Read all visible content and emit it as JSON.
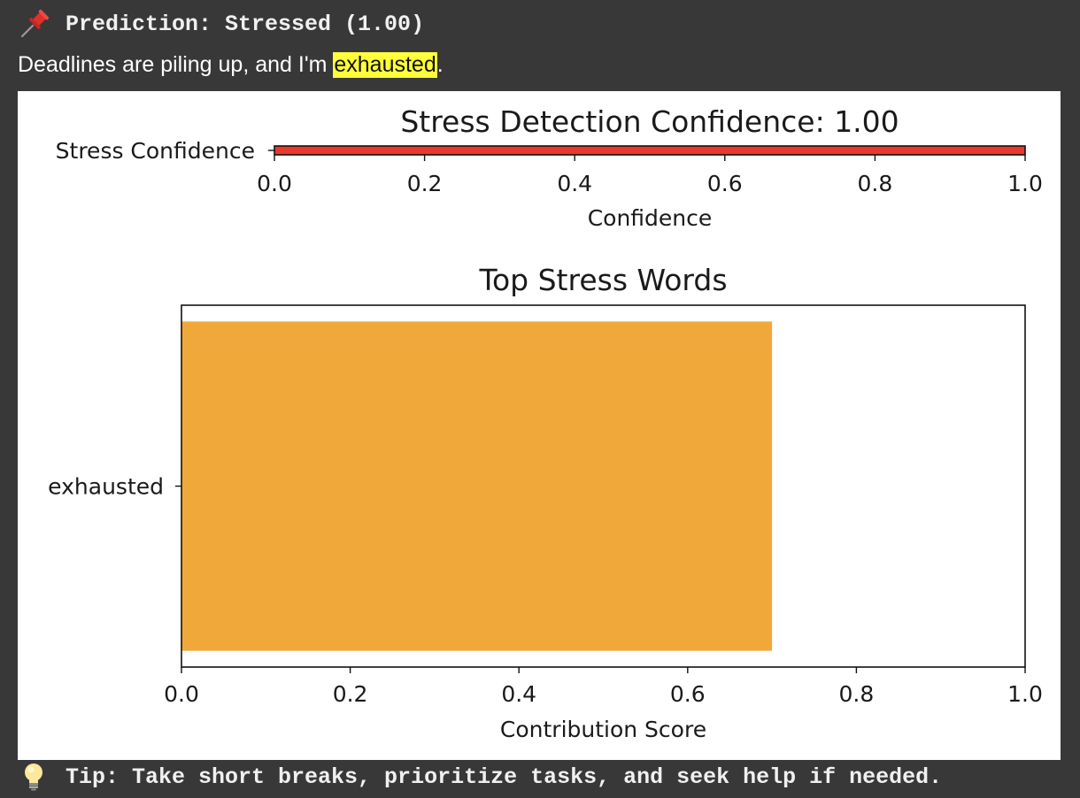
{
  "prediction": {
    "icon": "pushpin-icon",
    "text": "Prediction: Stressed (1.00)"
  },
  "input_text": {
    "before": "Deadlines are piling up, and I'm ",
    "highlighted_word": "exhausted",
    "after": ".",
    "highlight_color": "#ffff3a"
  },
  "chart_data": [
    {
      "type": "bar",
      "orientation": "horizontal",
      "title": "Stress Detection Confidence: 1.00",
      "xlabel": "Confidence",
      "ylabel": "",
      "categories": [
        "Stress Confidence"
      ],
      "values": [
        1.0
      ],
      "xlim": [
        0,
        1.0
      ],
      "xticks": [
        "0.0",
        "0.2",
        "0.4",
        "0.6",
        "0.8",
        "1.0"
      ],
      "bar_color": "#e8392a",
      "grid": false
    },
    {
      "type": "bar",
      "orientation": "horizontal",
      "title": "Top Stress Words",
      "xlabel": "Contribution Score",
      "ylabel": "",
      "categories": [
        "exhausted"
      ],
      "values": [
        0.7
      ],
      "xlim": [
        0,
        1.0
      ],
      "xticks": [
        "0.0",
        "0.2",
        "0.4",
        "0.6",
        "0.8",
        "1.0"
      ],
      "bar_color": "#f0a83b",
      "grid": false
    }
  ],
  "tip": {
    "icon": "lightbulb-icon",
    "text": "Tip: Take short breaks, prioritize tasks, and seek help if needed."
  }
}
